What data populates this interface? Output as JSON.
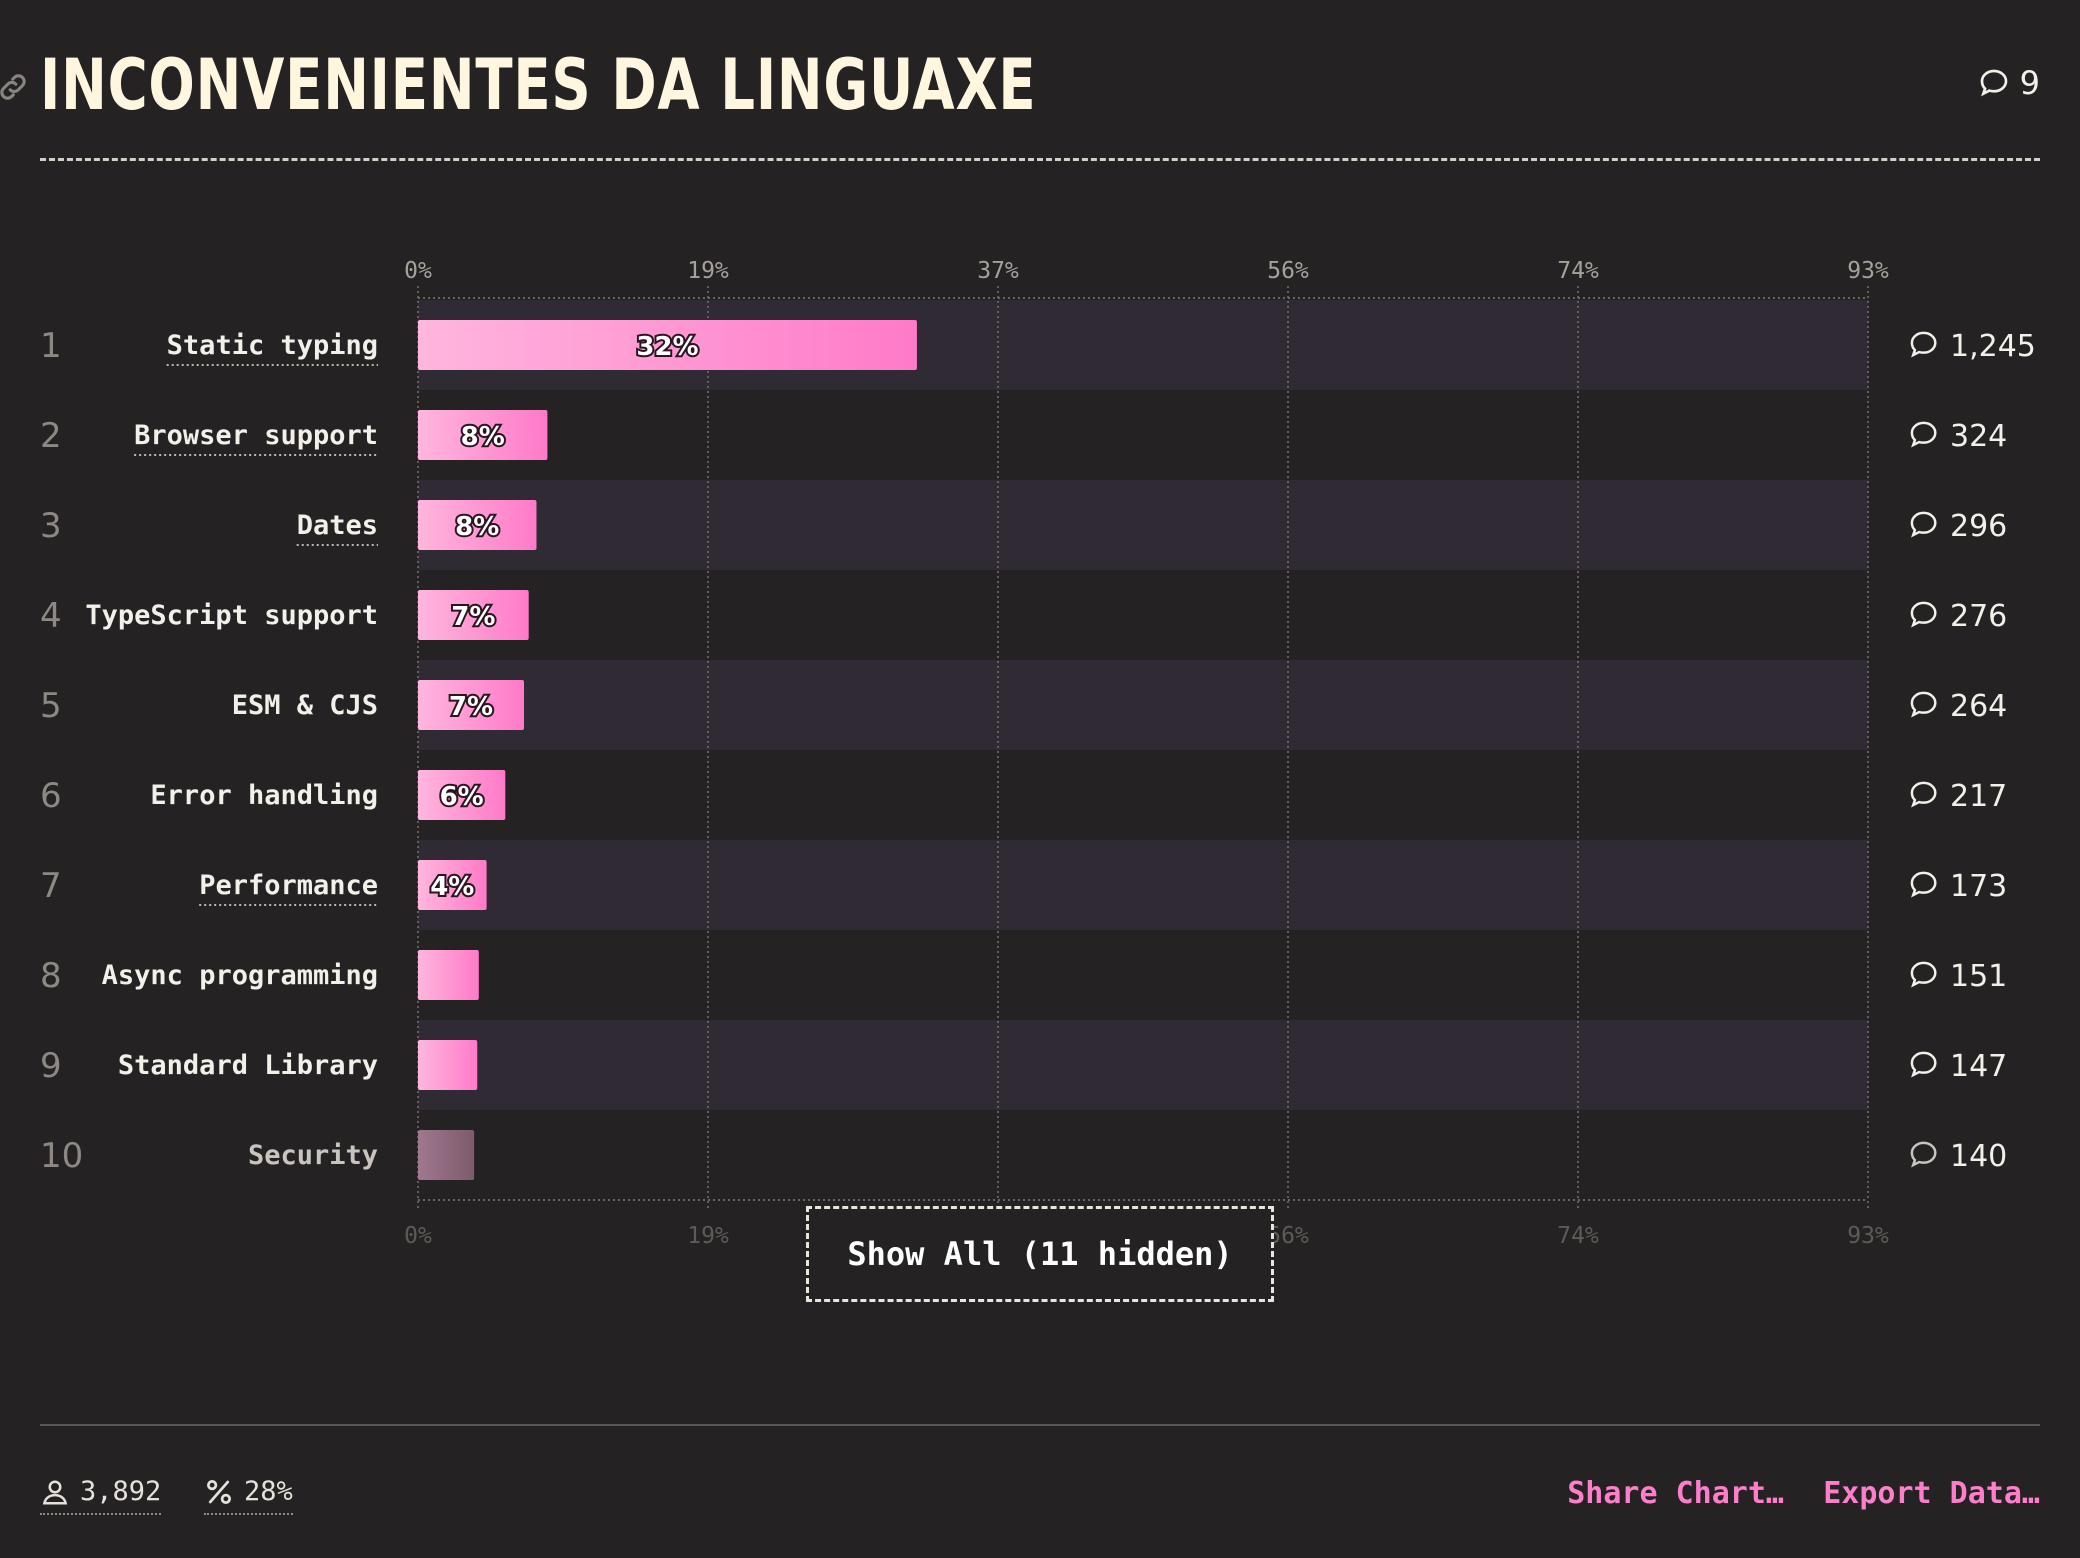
{
  "header": {
    "title": "INCONVENIENTES DA LINGUAXE",
    "comment_count": "9",
    "icons": [
      "link-icon",
      "comment-icon"
    ]
  },
  "chart_data": {
    "type": "bar",
    "orientation": "horizontal",
    "title": "INCONVENIENTES DA LINGUAXE",
    "x_ticks": [
      "0%",
      "19%",
      "37%",
      "56%",
      "74%",
      "93%"
    ],
    "xlim": [
      0,
      93
    ],
    "grid": true,
    "ranks": [
      "1",
      "2",
      "3",
      "4",
      "5",
      "6",
      "7",
      "8",
      "9",
      "10"
    ],
    "categories": [
      "Static typing",
      "Browser support",
      "Dates",
      "TypeScript support",
      "ESM & CJS",
      "Error handling",
      "Performance",
      "Async programming",
      "Standard Library",
      "Security"
    ],
    "values": [
      32,
      8.3,
      7.6,
      7.1,
      6.8,
      5.6,
      4.4,
      3.9,
      3.8,
      3.6
    ],
    "value_labels": [
      "32%",
      "8%",
      "8%",
      "7%",
      "7%",
      "6%",
      "4%",
      "",
      "",
      ""
    ],
    "comment_counts": [
      "1,245",
      "324",
      "296",
      "276",
      "264",
      "217",
      "173",
      "151",
      "147",
      "140"
    ],
    "colors": {
      "bar_start": "#ffb6de",
      "bar_end": "#ff7ac8",
      "row_alt": "#2f2a33"
    }
  },
  "show_all": {
    "label": "Show All (11 hidden)"
  },
  "footer": {
    "respondents": "3,892",
    "percentage": "28%",
    "share_label": "Share Chart…",
    "export_label": "Export Data…",
    "icons": [
      "user-icon",
      "percent-icon"
    ]
  },
  "colors": {
    "background": "#252223",
    "accent": "#ff7ecb",
    "title": "#fff6e0"
  }
}
